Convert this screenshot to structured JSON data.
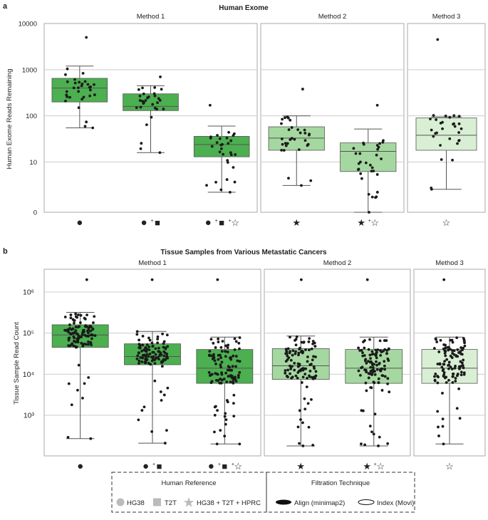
{
  "colors": {
    "method1": "#4caf50",
    "method2": "#a5d8a0",
    "method3": "#d9efd4",
    "grid": "#cccccc",
    "frame": "#aaaaaa",
    "dot": "#1a1a1a",
    "whisker": "#555555"
  },
  "symbols": {
    "hg38": "●",
    "t2t": "■",
    "hprc": "☆",
    "align": "★",
    "plus": "+"
  },
  "legend": {
    "human_ref_title": "Human Reference",
    "filtration_title": "Filtration Technique",
    "items": [
      "HG38",
      "T2T",
      "HG38 + T2T + HPRC"
    ],
    "filtration_items": [
      "Align (minimap2)",
      "Index (Movi)"
    ]
  },
  "chart_data": [
    {
      "panel_letter": "a",
      "type": "box",
      "title": "Human Exome",
      "ylabel": "Human Exome Reads Remaining",
      "yscale": "symlog",
      "ylim": [
        0,
        10000
      ],
      "yticks": [
        "0",
        "10",
        "100",
        "1000",
        "10000"
      ],
      "panels": [
        {
          "label": "Method 1",
          "boxes": [
            {
              "symbols": [
                "hg38"
              ],
              "color": "method1",
              "q1": 200,
              "median": 400,
              "q3": 650,
              "whislo": 55,
              "whishi": 1200,
              "n": 32,
              "min": 55,
              "max": 5000,
              "seed": 11
            },
            {
              "symbols": [
                "hg38",
                "t2t"
              ],
              "color": "method1",
              "q1": 130,
              "median": 160,
              "q3": 300,
              "whislo": 16,
              "whishi": 450,
              "n": 32,
              "min": 16,
              "max": 700,
              "seed": 12
            },
            {
              "symbols": [
                "hg38",
                "t2t",
                "hprc"
              ],
              "color": "method1",
              "q1": 13,
              "median": 24,
              "q3": 36,
              "whislo": 1.6,
              "whishi": 60,
              "n": 30,
              "min": 1.6,
              "max": 170,
              "seed": 13
            }
          ]
        },
        {
          "label": "Method 2",
          "boxes": [
            {
              "symbols": [
                "align"
              ],
              "color": "method2",
              "q1": 18,
              "median": 33,
              "q3": 58,
              "whislo": 2.6,
              "whishi": 100,
              "n": 32,
              "min": 2.6,
              "max": 380,
              "seed": 21
            },
            {
              "symbols": [
                "align",
                "hprc"
              ],
              "color": "method2",
              "q1": 6,
              "median": 17,
              "q3": 26,
              "whislo": 0,
              "whishi": 52,
              "n": 32,
              "min": 0,
              "max": 170,
              "seed": 22
            }
          ]
        },
        {
          "label": "Method 3",
          "boxes": [
            {
              "symbols": [
                "hprc"
              ],
              "color": "method3",
              "q1": 18,
              "median": 38,
              "q3": 90,
              "whislo": 2,
              "whishi": 95,
              "n": 30,
              "min": 2,
              "max": 4500,
              "seed": 31
            }
          ]
        }
      ]
    },
    {
      "panel_letter": "b",
      "type": "box",
      "title": "Tissue Samples from Various Metastatic Cancers",
      "ylabel": "Tissue Sample Read Count",
      "yscale": "log",
      "ylim": [
        200,
        3000000
      ],
      "yticks": [
        "10³",
        "10⁴",
        "10⁵",
        "10⁶"
      ],
      "panels": [
        {
          "label": "Method 1",
          "boxes": [
            {
              "symbols": [
                "hg38"
              ],
              "color": "method1",
              "q1": 45000,
              "median": 90000,
              "q3": 160000,
              "whislo": 270,
              "whishi": 320000,
              "n": 110,
              "min": 270,
              "max": 2000000,
              "seed": 41
            },
            {
              "symbols": [
                "hg38",
                "t2t"
              ],
              "color": "method1",
              "q1": 17000,
              "median": 27000,
              "q3": 55000,
              "whislo": 210,
              "whishi": 110000,
              "n": 110,
              "min": 210,
              "max": 2000000,
              "seed": 42
            },
            {
              "symbols": [
                "hg38",
                "t2t",
                "hprc"
              ],
              "color": "method1",
              "q1": 6000,
              "median": 14000,
              "q3": 40000,
              "whislo": 200,
              "whishi": 80000,
              "n": 110,
              "min": 200,
              "max": 2000000,
              "seed": 43
            }
          ]
        },
        {
          "label": "Method 2",
          "boxes": [
            {
              "symbols": [
                "align"
              ],
              "color": "method2",
              "q1": 7500,
              "median": 16000,
              "q3": 42000,
              "whislo": 180,
              "whishi": 85000,
              "n": 110,
              "min": 180,
              "max": 2000000,
              "seed": 51
            },
            {
              "symbols": [
                "align",
                "hprc"
              ],
              "color": "method2",
              "q1": 6000,
              "median": 14000,
              "q3": 40000,
              "whislo": 180,
              "whishi": 80000,
              "n": 110,
              "min": 180,
              "max": 2000000,
              "seed": 52
            }
          ]
        },
        {
          "label": "Method 3",
          "boxes": [
            {
              "symbols": [
                "hprc"
              ],
              "color": "method3",
              "q1": 6000,
              "median": 14000,
              "q3": 40000,
              "whislo": 200,
              "whishi": 80000,
              "n": 110,
              "min": 200,
              "max": 2000000,
              "seed": 61
            }
          ]
        }
      ]
    }
  ]
}
